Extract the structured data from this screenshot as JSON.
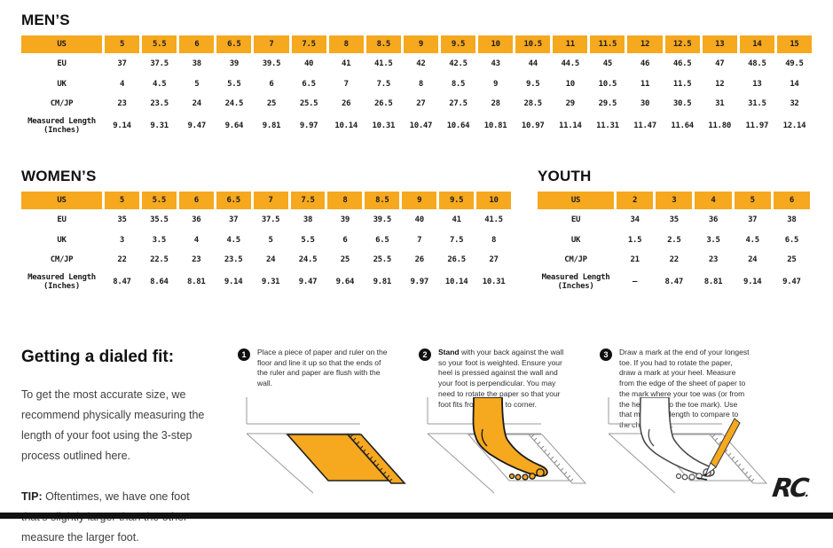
{
  "colors": {
    "accent": "#F6A81F",
    "ink": "#1B1B1B",
    "footer_bar": "#121212"
  },
  "tables": {
    "mens": {
      "title": "MEN’S",
      "rows": [
        {
          "label": "US",
          "values": [
            "5",
            "5.5",
            "6",
            "6.5",
            "7",
            "7.5",
            "8",
            "8.5",
            "9",
            "9.5",
            "10",
            "10.5",
            "11",
            "11.5",
            "12",
            "12.5",
            "13",
            "14",
            "15"
          ]
        },
        {
          "label": "EU",
          "values": [
            "37",
            "37.5",
            "38",
            "39",
            "39.5",
            "40",
            "41",
            "41.5",
            "42",
            "42.5",
            "43",
            "44",
            "44.5",
            "45",
            "46",
            "46.5",
            "47",
            "48.5",
            "49.5"
          ]
        },
        {
          "label": "UK",
          "values": [
            "4",
            "4.5",
            "5",
            "5.5",
            "6",
            "6.5",
            "7",
            "7.5",
            "8",
            "8.5",
            "9",
            "9.5",
            "10",
            "10.5",
            "11",
            "11.5",
            "12",
            "13",
            "14"
          ]
        },
        {
          "label": "CM/JP",
          "values": [
            "23",
            "23.5",
            "24",
            "24.5",
            "25",
            "25.5",
            "26",
            "26.5",
            "27",
            "27.5",
            "28",
            "28.5",
            "29",
            "29.5",
            "30",
            "30.5",
            "31",
            "31.5",
            "32"
          ]
        },
        {
          "label": "Measured Length (Inches)",
          "values": [
            "9.14",
            "9.31",
            "9.47",
            "9.64",
            "9.81",
            "9.97",
            "10.14",
            "10.31",
            "10.47",
            "10.64",
            "10.81",
            "10.97",
            "11.14",
            "11.31",
            "11.47",
            "11.64",
            "11.80",
            "11.97",
            "12.14"
          ]
        }
      ]
    },
    "womens": {
      "title": "WOMEN’S",
      "rows": [
        {
          "label": "US",
          "values": [
            "5",
            "5.5",
            "6",
            "6.5",
            "7",
            "7.5",
            "8",
            "8.5",
            "9",
            "9.5",
            "10"
          ]
        },
        {
          "label": "EU",
          "values": [
            "35",
            "35.5",
            "36",
            "37",
            "37.5",
            "38",
            "39",
            "39.5",
            "40",
            "41",
            "41.5"
          ]
        },
        {
          "label": "UK",
          "values": [
            "3",
            "3.5",
            "4",
            "4.5",
            "5",
            "5.5",
            "6",
            "6.5",
            "7",
            "7.5",
            "8"
          ]
        },
        {
          "label": "CM/JP",
          "values": [
            "22",
            "22.5",
            "23",
            "23.5",
            "24",
            "24.5",
            "25",
            "25.5",
            "26",
            "26.5",
            "27"
          ]
        },
        {
          "label": "Measured Length (Inches)",
          "values": [
            "8.47",
            "8.64",
            "8.81",
            "9.14",
            "9.31",
            "9.47",
            "9.64",
            "9.81",
            "9.97",
            "10.14",
            "10.31"
          ]
        }
      ]
    },
    "youth": {
      "title": "YOUTH",
      "rows": [
        {
          "label": "US",
          "values": [
            "2",
            "3",
            "4",
            "5",
            "6"
          ]
        },
        {
          "label": "EU",
          "values": [
            "34",
            "35",
            "36",
            "37",
            "38"
          ]
        },
        {
          "label": "UK",
          "values": [
            "1.5",
            "2.5",
            "3.5",
            "4.5",
            "6.5"
          ]
        },
        {
          "label": "CM/JP",
          "values": [
            "21",
            "22",
            "23",
            "24",
            "25"
          ]
        },
        {
          "label": "Measured Length (Inches)",
          "values": [
            "–",
            "8.47",
            "8.81",
            "9.14",
            "9.47"
          ]
        }
      ]
    }
  },
  "fit_guide": {
    "heading": "Getting a dialed fit:",
    "intro": "To get the most accurate size, we recommend physically measuring the length of your foot using the 3-step process outlined here.",
    "tip_label": "TIP:",
    "tip_text": " Oftentimes, we have one foot that's slightly larger than the other—measure the larger foot.",
    "steps": [
      {
        "number": "1",
        "lead": "",
        "text": "Place a piece of paper and ruler on the floor and line it up so that the ends of the ruler and paper are flush with the wall."
      },
      {
        "number": "2",
        "lead": "Stand",
        "text": " with your back against the wall so your foot is weighted. Ensure your heel is pressed against the wall and your foot is perpendicular. You may need to rotate the paper so that your foot fits from corner to corner."
      },
      {
        "number": "3",
        "lead": "",
        "text": "Draw a mark at the end of your longest toe. If you had to rotate the paper, draw a mark at your heel. Measure from the edge of the sheet of paper to the mark where your toe was (or from the heel mark to the toe mark). Use that measured length to compare to the chart above."
      }
    ]
  },
  "logo": {
    "text": "RC"
  }
}
